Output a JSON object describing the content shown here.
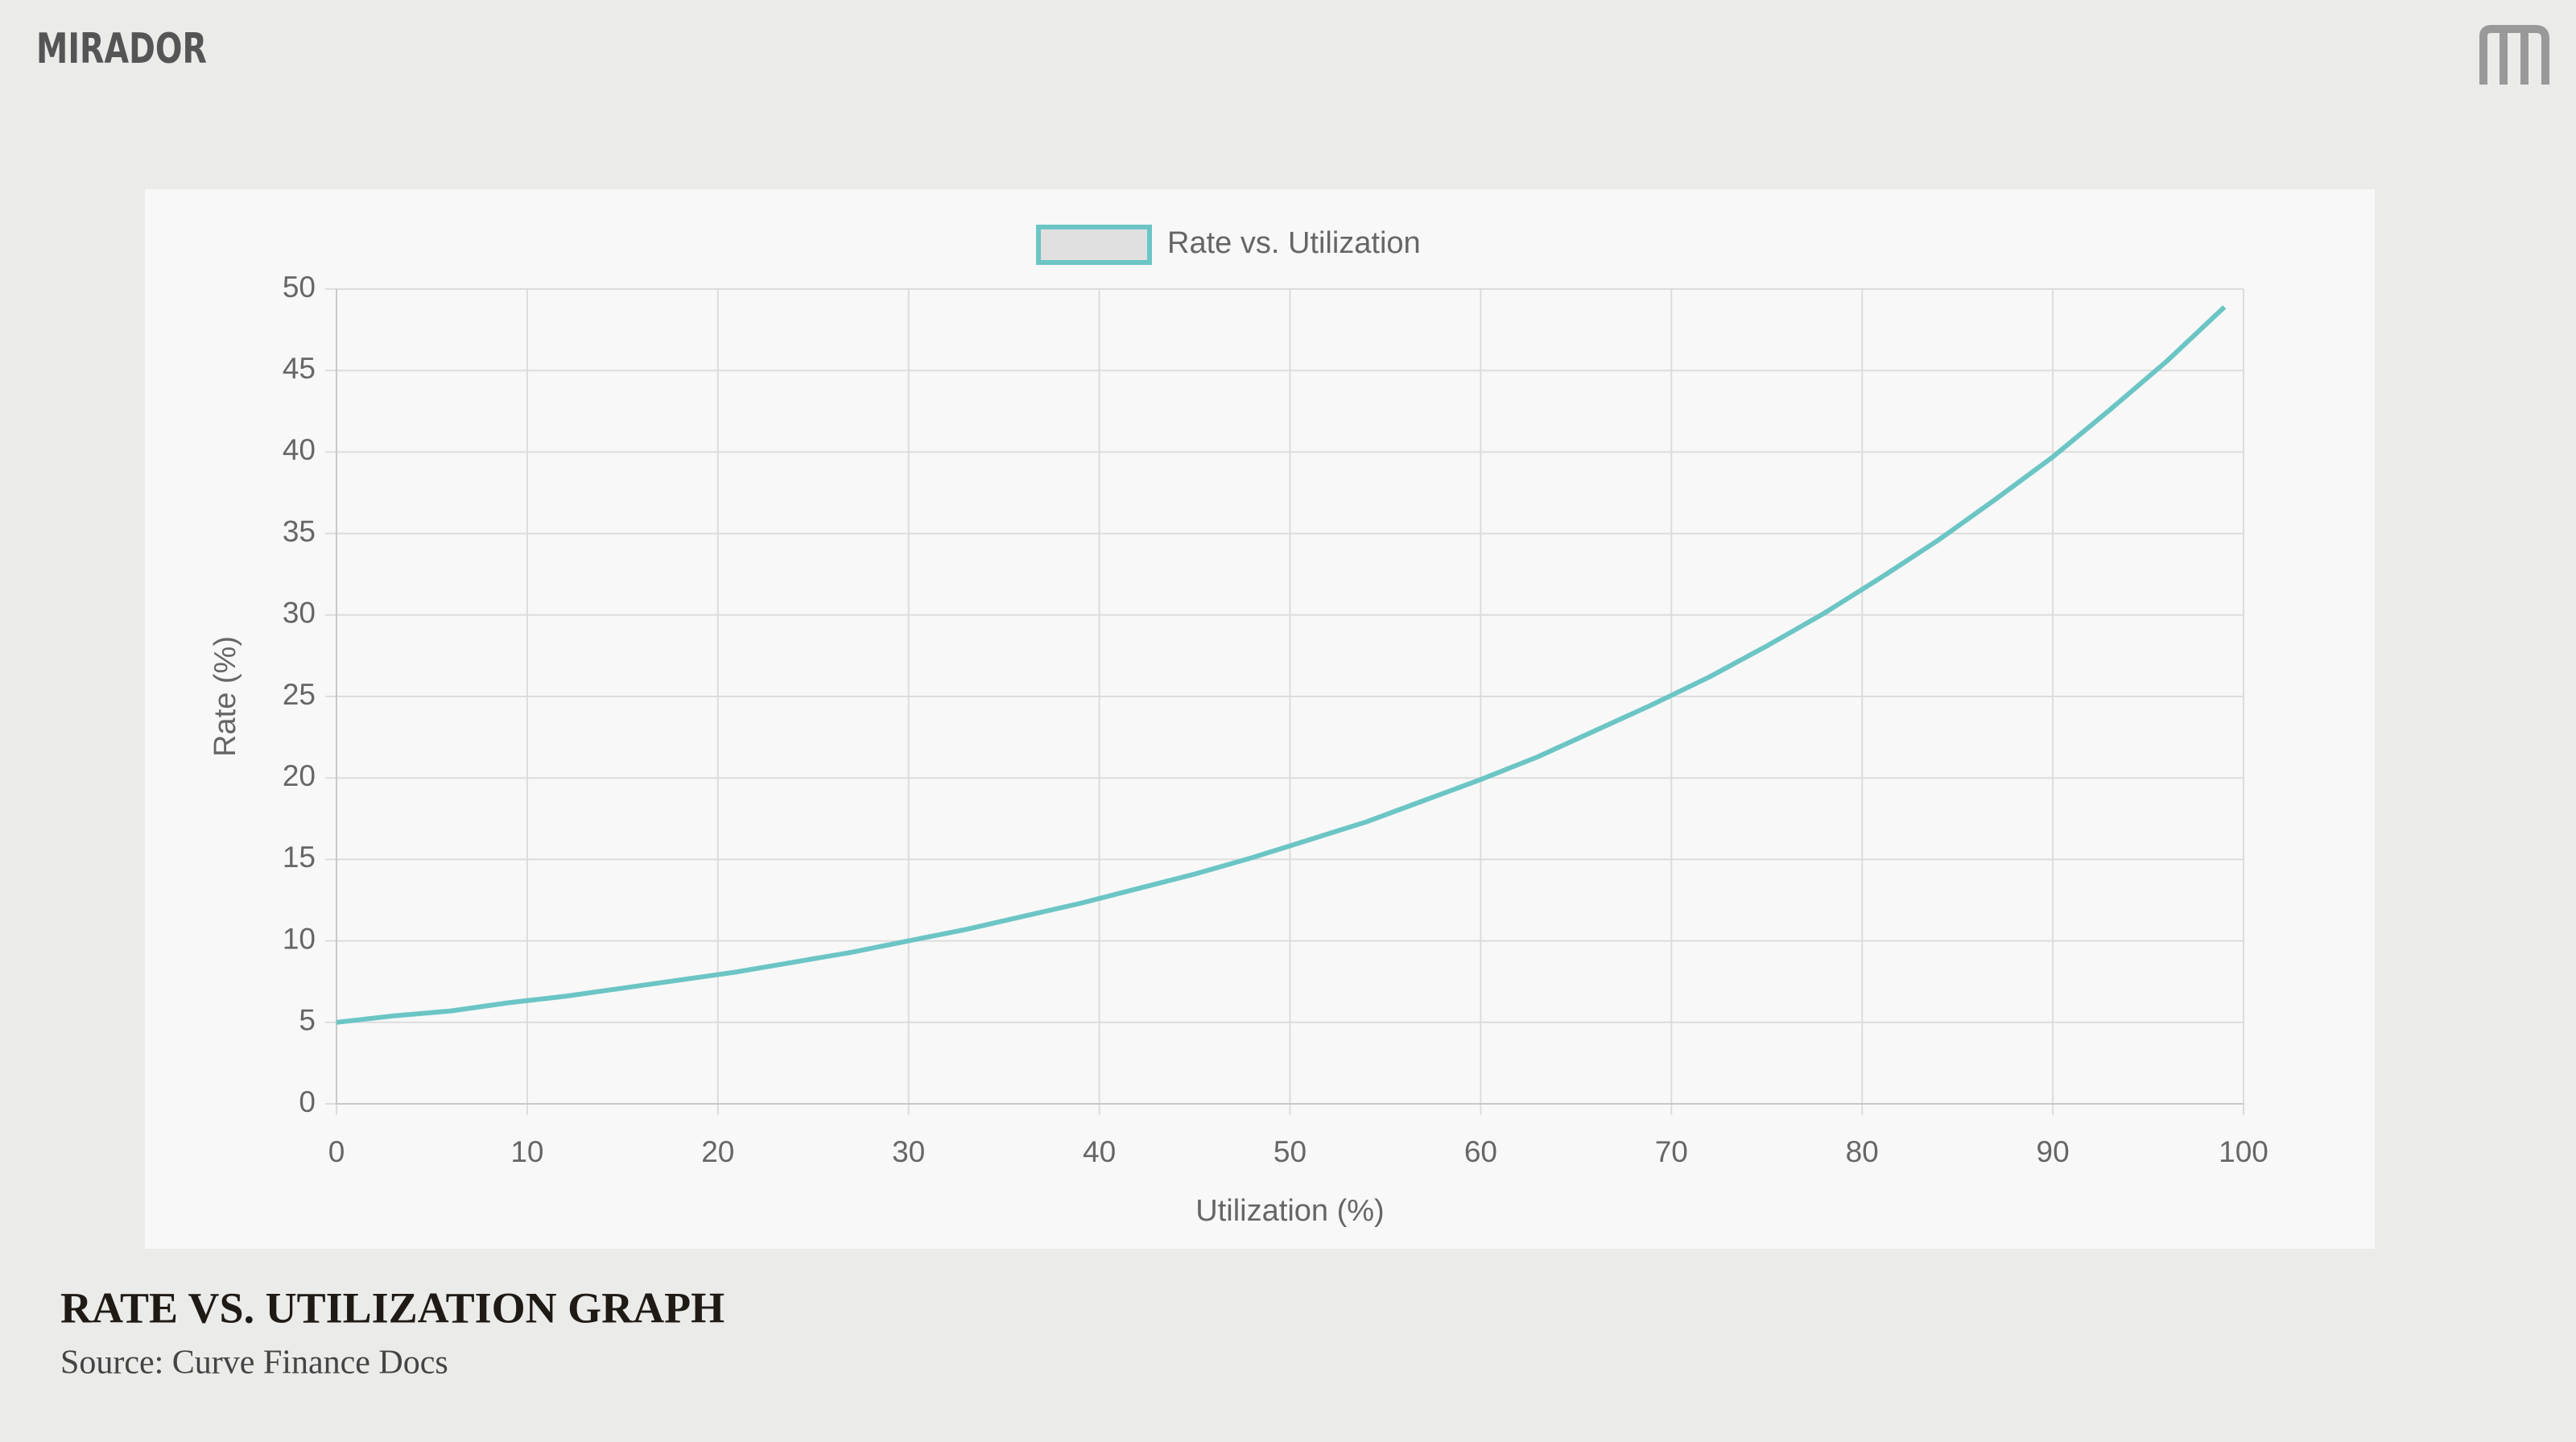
{
  "header": {
    "brand": "MIRADOR"
  },
  "chart_data": {
    "type": "line",
    "x_label": "Utilization (%)",
    "y_label": "Rate (%)",
    "x": [
      0,
      3,
      6,
      9,
      12,
      15,
      18,
      21,
      24,
      27,
      30,
      33,
      36,
      39,
      42,
      45,
      48,
      51,
      54,
      57,
      60,
      63,
      66,
      69,
      72,
      75,
      78,
      81,
      84,
      87,
      90,
      93,
      96,
      99
    ],
    "series": [
      {
        "name": "Rate vs. Utilization",
        "color": "#6cc5c5",
        "values": [
          5,
          5.4,
          5.7,
          6.2,
          6.6,
          7.1,
          7.6,
          8.1,
          8.7,
          9.3,
          10,
          10.7,
          11.5,
          12.3,
          13.2,
          14.1,
          15.1,
          16.2,
          17.3,
          18.6,
          19.9,
          21.3,
          22.9,
          24.5,
          26.2,
          28.1,
          30.1,
          32.3,
          34.6,
          37.1,
          39.7,
          42.6,
          45.6,
          48.9
        ]
      }
    ],
    "xlim": [
      0,
      100
    ],
    "ylim": [
      0,
      50
    ],
    "xticks": [
      0,
      10,
      20,
      30,
      40,
      50,
      60,
      70,
      80,
      90,
      100
    ],
    "yticks": [
      0,
      5,
      10,
      15,
      20,
      25,
      30,
      35,
      40,
      45,
      50
    ],
    "grid": true,
    "legend": "top"
  },
  "caption": {
    "title": "RATE VS. UTILIZATION GRAPH",
    "source": "Source: Curve Finance Docs"
  }
}
